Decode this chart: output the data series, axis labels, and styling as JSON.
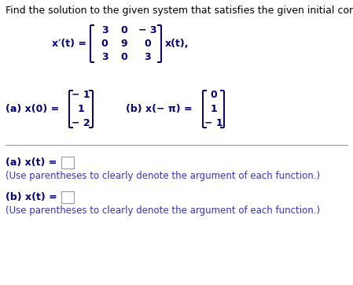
{
  "title": "Find the solution to the given system that satisfies the given initial condition.",
  "title_color": "#000000",
  "title_fontsize": 9.0,
  "matrix_rows": [
    [
      "3",
      "0",
      "− 3"
    ],
    [
      "0",
      "9",
      "0"
    ],
    [
      "3",
      "0",
      "3"
    ]
  ],
  "ic_a_vec": [
    "− 1",
    "1",
    "− 2"
  ],
  "ic_b_vec": [
    "0",
    "1",
    "− 1"
  ],
  "hint": "(Use parentheses to clearly denote the argument of each function.)",
  "bold_color": "#000080",
  "hint_color": "#3333cc",
  "separator_color": "#999999",
  "bg_color": "#ffffff",
  "answer_box_edge": "#999999"
}
